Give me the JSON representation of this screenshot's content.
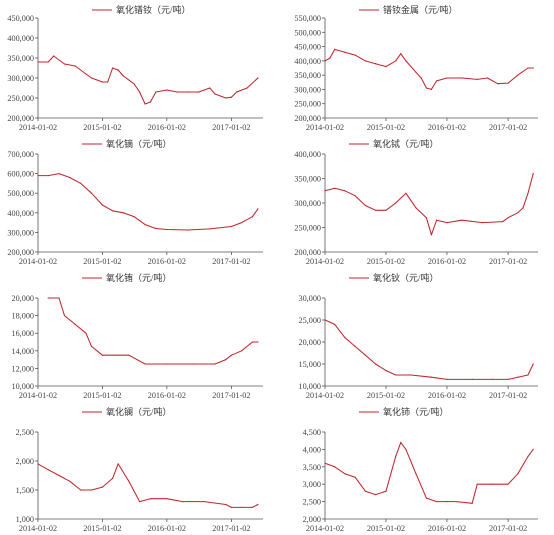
{
  "colors": {
    "series": "#c0262d",
    "axis": "#555555",
    "text": "#333333"
  },
  "chart_data": [
    {
      "type": "line",
      "title": "氧化镨钕（元/吨）",
      "legend": "top-center",
      "x_ticks": [
        "2014-01-02",
        "2015-01-02",
        "2016-01-02",
        "2017-01-02"
      ],
      "y_ticks": [
        "200,000",
        "250,000",
        "300,000",
        "350,000",
        "400,000",
        "450,000"
      ],
      "ylim": [
        200000,
        450000
      ],
      "series": [
        {
          "name": "氧化镨钕（元/吨）",
          "x": [
            "2014-01-02",
            "2014-03-01",
            "2014-04-01",
            "2014-06-01",
            "2014-08-01",
            "2014-10-01",
            "2014-11-01",
            "2015-01-02",
            "2015-02-01",
            "2015-03-01",
            "2015-04-01",
            "2015-05-01",
            "2015-07-01",
            "2015-08-01",
            "2015-09-01",
            "2015-10-01",
            "2015-11-01",
            "2016-01-02",
            "2016-03-01",
            "2016-05-01",
            "2016-07-01",
            "2016-09-01",
            "2016-10-01",
            "2016-12-01",
            "2017-01-02",
            "2017-02-01",
            "2017-04-01",
            "2017-06-01"
          ],
          "values": [
            340000,
            340000,
            355000,
            335000,
            330000,
            310000,
            300000,
            290000,
            290000,
            325000,
            320000,
            305000,
            285000,
            265000,
            235000,
            240000,
            265000,
            270000,
            265000,
            265000,
            265000,
            275000,
            260000,
            250000,
            252000,
            265000,
            275000,
            300000
          ]
        }
      ]
    },
    {
      "type": "line",
      "title": "镨钕金属（元/吨）",
      "legend": "top-center",
      "x_ticks": [
        "2014-01-02",
        "2015-01-02",
        "2016-01-02",
        "2017-01-02"
      ],
      "y_ticks": [
        "200,000",
        "250,000",
        "300,000",
        "350,000",
        "400,000",
        "450,000",
        "500,000",
        "550,000"
      ],
      "ylim": [
        200000,
        550000
      ],
      "series": [
        {
          "name": "镨钕金属（元/吨）",
          "x": [
            "2014-01-02",
            "2014-02-01",
            "2014-03-01",
            "2014-05-01",
            "2014-07-01",
            "2014-09-01",
            "2014-11-01",
            "2015-01-02",
            "2015-03-01",
            "2015-04-01",
            "2015-05-01",
            "2015-07-01",
            "2015-08-01",
            "2015-09-01",
            "2015-10-01",
            "2015-11-01",
            "2016-01-02",
            "2016-04-01",
            "2016-07-01",
            "2016-09-01",
            "2016-11-01",
            "2017-01-02",
            "2017-03-01",
            "2017-05-01",
            "2017-06-01"
          ],
          "values": [
            400000,
            410000,
            440000,
            430000,
            420000,
            400000,
            390000,
            380000,
            400000,
            425000,
            400000,
            360000,
            340000,
            305000,
            300000,
            330000,
            340000,
            340000,
            335000,
            340000,
            320000,
            322000,
            350000,
            375000,
            375000
          ]
        }
      ]
    },
    {
      "type": "line",
      "title": "氧化镝（元/吨）",
      "legend": "top-center",
      "x_ticks": [
        "2014-01-02",
        "2015-01-02",
        "2016-01-02",
        "2017-01-02"
      ],
      "y_ticks": [
        "200,000",
        "300,000",
        "400,000",
        "500,000",
        "600,000",
        "700,000"
      ],
      "ylim": [
        200000,
        700000
      ],
      "series": [
        {
          "name": "氧化镝（元/吨）",
          "x": [
            "2014-01-02",
            "2014-03-01",
            "2014-05-01",
            "2014-07-01",
            "2014-09-01",
            "2014-11-01",
            "2015-01-02",
            "2015-03-01",
            "2015-05-01",
            "2015-07-01",
            "2015-09-01",
            "2015-11-01",
            "2016-01-02",
            "2016-05-01",
            "2016-09-01",
            "2017-01-02",
            "2017-03-01",
            "2017-05-01",
            "2017-06-01"
          ],
          "values": [
            590000,
            590000,
            600000,
            580000,
            550000,
            500000,
            440000,
            410000,
            400000,
            380000,
            340000,
            320000,
            315000,
            312000,
            318000,
            330000,
            350000,
            380000,
            420000
          ]
        }
      ]
    },
    {
      "type": "line",
      "title": "氧化铽（元/吨）",
      "legend": "top-center",
      "x_ticks": [
        "2014-01-02",
        "2015-01-02",
        "2016-01-02",
        "2017-01-02"
      ],
      "y_ticks": [
        "200,000",
        "250,000",
        "300,000",
        "350,000",
        "400,000"
      ],
      "ylim": [
        200000,
        400000
      ],
      "series": [
        {
          "name": "氧化铽（元/吨）",
          "x": [
            "2014-01-02",
            "2014-03-01",
            "2014-05-01",
            "2014-07-01",
            "2014-09-01",
            "2014-11-01",
            "2015-01-02",
            "2015-03-01",
            "2015-05-01",
            "2015-07-01",
            "2015-09-01",
            "2015-10-01",
            "2015-11-01",
            "2016-01-02",
            "2016-04-01",
            "2016-08-01",
            "2016-12-01",
            "2017-01-02",
            "2017-03-01",
            "2017-04-01",
            "2017-05-01",
            "2017-06-01"
          ],
          "values": [
            325000,
            330000,
            325000,
            315000,
            295000,
            285000,
            285000,
            300000,
            320000,
            290000,
            270000,
            235000,
            265000,
            260000,
            265000,
            260000,
            262000,
            270000,
            280000,
            290000,
            320000,
            360000
          ]
        }
      ]
    },
    {
      "type": "line",
      "title": "氧化铕（元/吨）",
      "legend": "top-center",
      "x_ticks": [
        "2014-01-02",
        "2015-01-02",
        "2016-01-02",
        "2017-01-02"
      ],
      "y_ticks": [
        "10,000",
        "12,000",
        "14,000",
        "16,000",
        "18,000",
        "20,000"
      ],
      "ylim": [
        10000,
        20000
      ],
      "series": [
        {
          "name": "氧化铕（元/吨）",
          "x": [
            "2014-03-01",
            "2014-05-01",
            "2014-06-01",
            "2014-08-01",
            "2014-10-01",
            "2014-11-01",
            "2015-01-02",
            "2015-06-01",
            "2015-09-01",
            "2016-01-02",
            "2016-06-01",
            "2016-10-01",
            "2016-12-01",
            "2017-01-02",
            "2017-03-01",
            "2017-05-01",
            "2017-06-01"
          ],
          "values": [
            20000,
            20000,
            18000,
            17000,
            16000,
            14500,
            13500,
            13500,
            12500,
            12500,
            12500,
            12500,
            13000,
            13500,
            14000,
            15000,
            15000
          ]
        }
      ]
    },
    {
      "type": "line",
      "title": "氧化钬（元/吨）",
      "legend": "top-center",
      "x_ticks": [
        "2014-01-02",
        "2015-01-02",
        "2016-01-02",
        "2017-01-02"
      ],
      "y_ticks": [
        "10,000",
        "15,000",
        "20,000",
        "25,000",
        "30,000"
      ],
      "ylim": [
        10000,
        30000
      ],
      "series": [
        {
          "name": "氧化钬（元/吨）",
          "x": [
            "2014-01-02",
            "2014-03-01",
            "2014-05-01",
            "2014-07-01",
            "2014-09-01",
            "2014-11-01",
            "2015-01-02",
            "2015-03-01",
            "2015-06-01",
            "2015-10-01",
            "2016-01-02",
            "2016-06-01",
            "2016-10-01",
            "2017-01-02",
            "2017-03-01",
            "2017-05-01",
            "2017-06-01"
          ],
          "values": [
            25000,
            24000,
            21000,
            19000,
            17000,
            15000,
            13500,
            12500,
            12500,
            12000,
            11500,
            11500,
            11500,
            11500,
            12000,
            12500,
            15000
          ]
        }
      ]
    },
    {
      "type": "line",
      "title": "氧化镧（元/吨）",
      "legend": "top-center",
      "x_ticks": [
        "2014-01-02",
        "2015-01-02",
        "2016-01-02",
        "2017-01-02"
      ],
      "y_ticks": [
        "1,000",
        "1,500",
        "2,000",
        "2,500"
      ],
      "ylim": [
        1000,
        2500
      ],
      "series": [
        {
          "name": "氧化镧（元/吨）",
          "x": [
            "2014-01-02",
            "2014-03-01",
            "2014-05-01",
            "2014-07-01",
            "2014-09-01",
            "2014-11-01",
            "2015-01-02",
            "2015-03-01",
            "2015-04-01",
            "2015-06-01",
            "2015-08-01",
            "2015-10-01",
            "2016-01-02",
            "2016-04-01",
            "2016-08-01",
            "2016-12-01",
            "2017-01-02",
            "2017-03-01",
            "2017-05-01",
            "2017-06-01"
          ],
          "values": [
            1950,
            1850,
            1750,
            1650,
            1500,
            1500,
            1550,
            1700,
            1950,
            1650,
            1300,
            1350,
            1350,
            1300,
            1300,
            1250,
            1200,
            1200,
            1200,
            1250
          ]
        }
      ]
    },
    {
      "type": "line",
      "title": "氧化铈（元/吨）",
      "legend": "top-center",
      "x_ticks": [
        "2014-01-02",
        "2015-01-02",
        "2016-01-02",
        "2017-01-02"
      ],
      "y_ticks": [
        "2,000",
        "2,500",
        "3,000",
        "3,500",
        "4,000",
        "4,500"
      ],
      "ylim": [
        2000,
        4500
      ],
      "series": [
        {
          "name": "氧化铈（元/吨）",
          "x": [
            "2014-01-02",
            "2014-03-01",
            "2014-05-01",
            "2014-07-01",
            "2014-09-01",
            "2014-11-01",
            "2015-01-02",
            "2015-03-01",
            "2015-04-01",
            "2015-05-01",
            "2015-07-01",
            "2015-09-01",
            "2015-11-01",
            "2016-01-02",
            "2016-03-01",
            "2016-06-01",
            "2016-07-01",
            "2016-10-01",
            "2017-01-02",
            "2017-03-01",
            "2017-05-01",
            "2017-06-01"
          ],
          "values": [
            3600,
            3500,
            3300,
            3200,
            2800,
            2700,
            2800,
            3800,
            4200,
            4000,
            3300,
            2600,
            2500,
            2500,
            2500,
            2450,
            3000,
            3000,
            3000,
            3300,
            3800,
            4000
          ]
        }
      ]
    }
  ]
}
